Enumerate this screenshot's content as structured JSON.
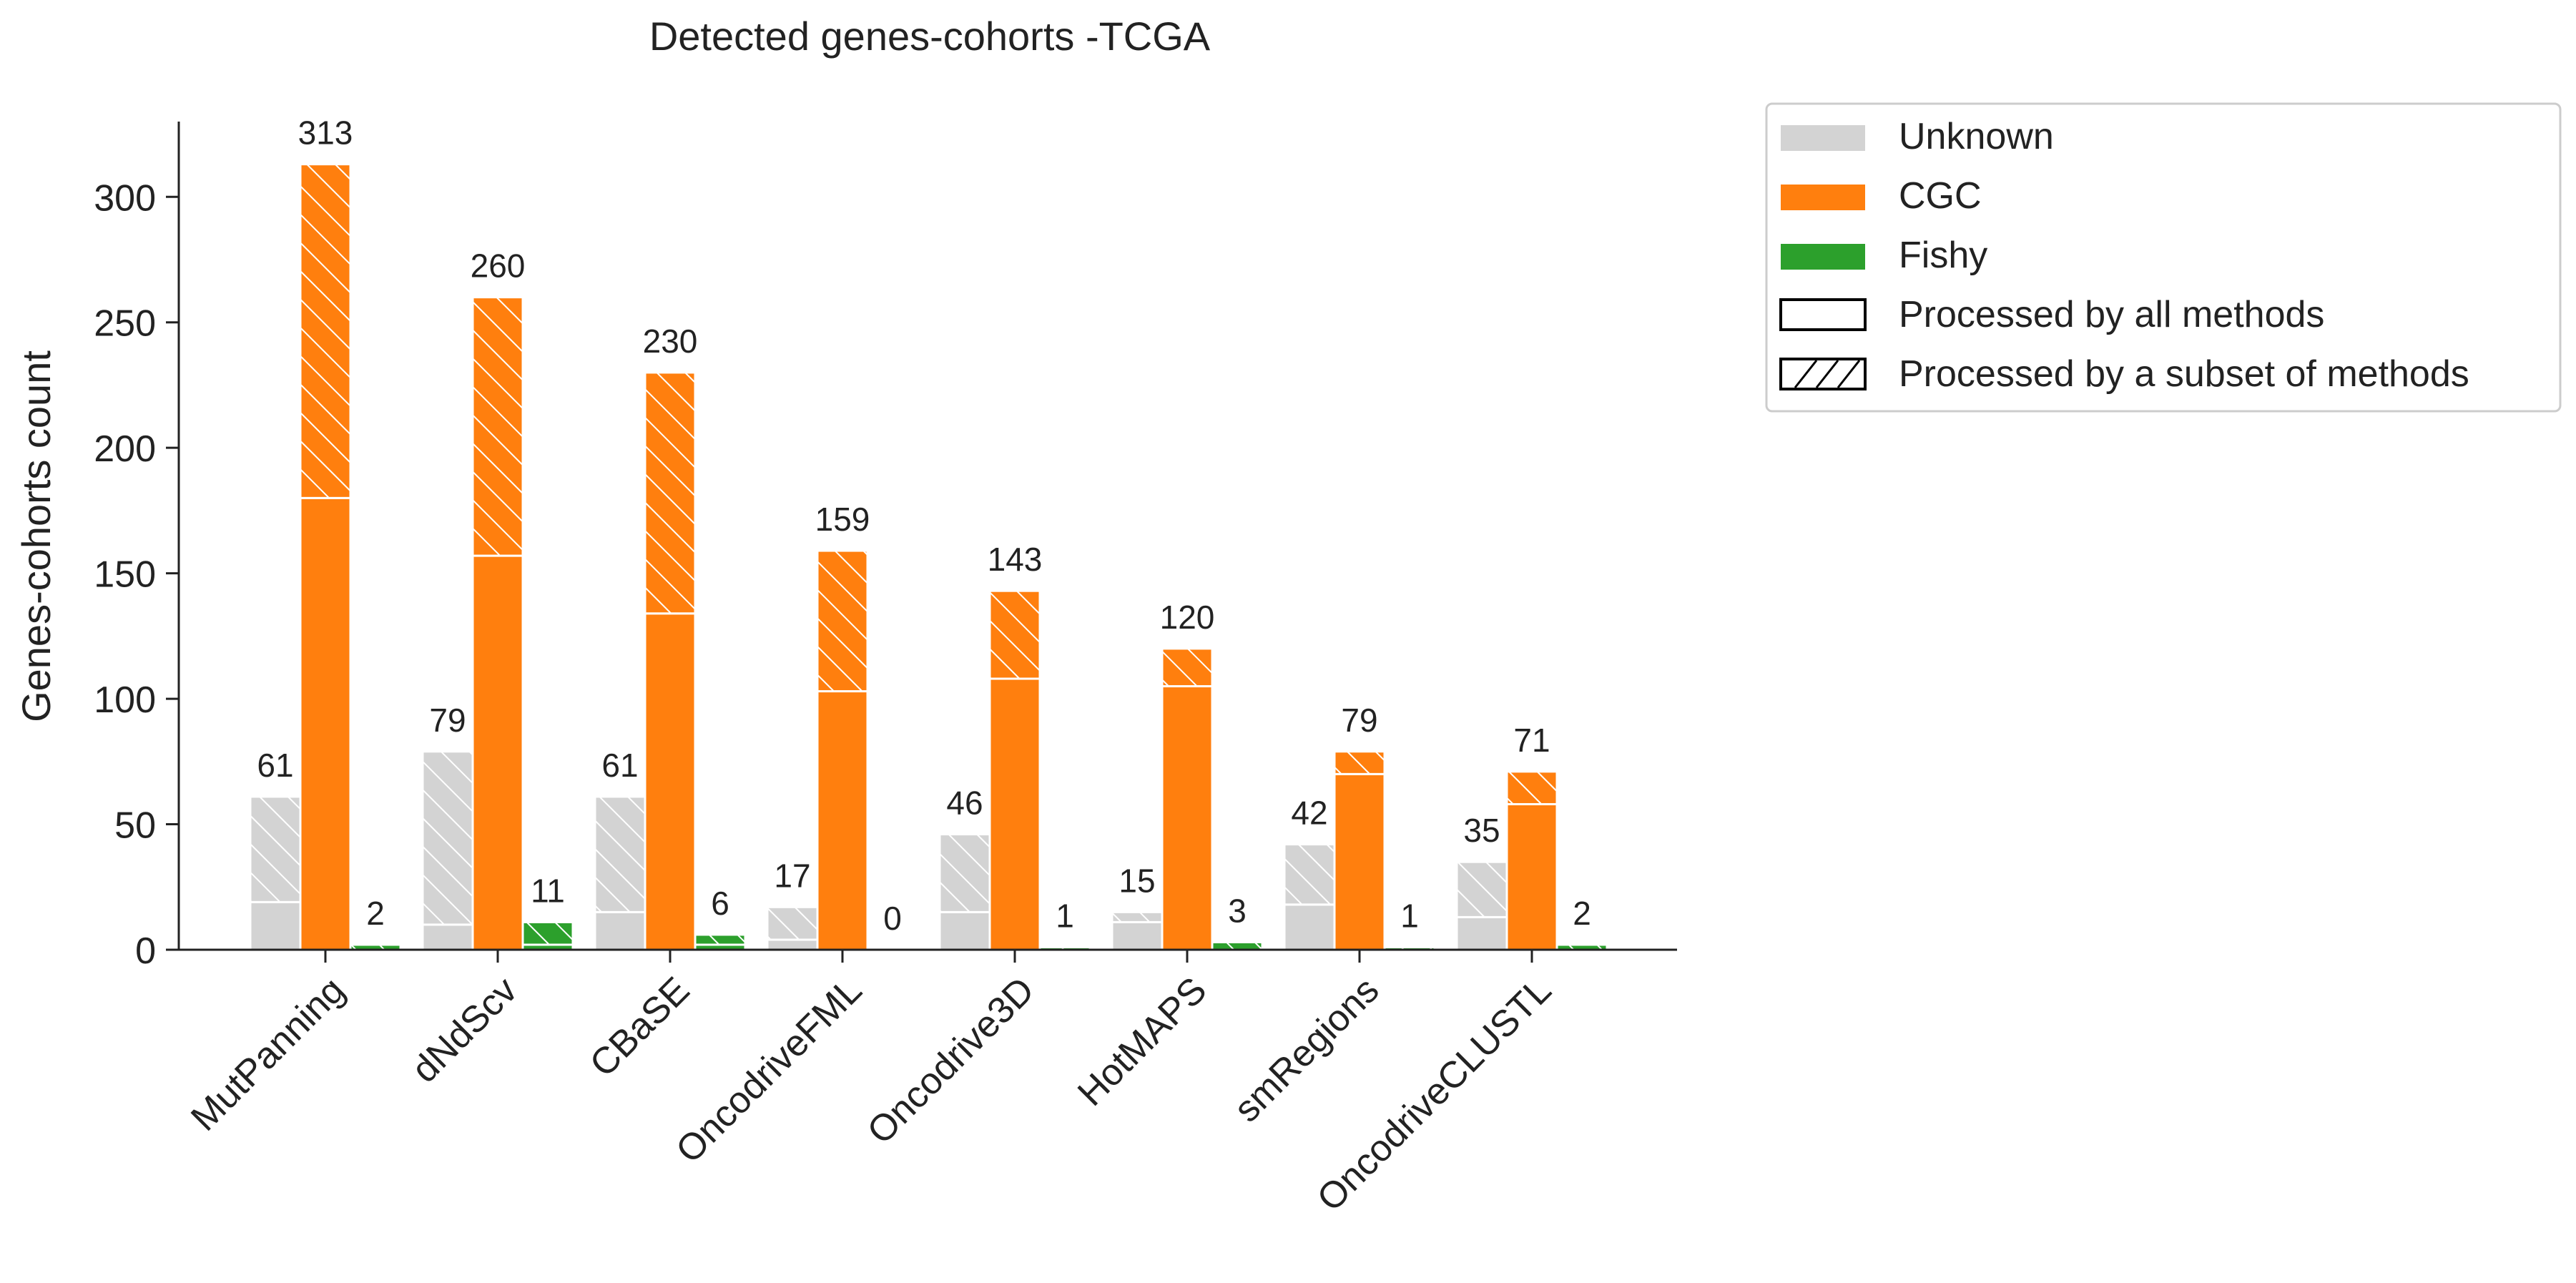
{
  "chart_data": {
    "type": "bar",
    "title": "Detected genes-cohorts -TCGA",
    "xlabel": "",
    "ylabel": "Genes-cohorts count",
    "ylim": [
      0,
      330
    ],
    "yticks": [
      0,
      50,
      100,
      150,
      200,
      250,
      300
    ],
    "categories": [
      "MutPanning",
      "dNdScv",
      "CBaSE",
      "OncodriveFML",
      "Oncodrive3D",
      "HotMAPS",
      "smRegions",
      "OncodriveCLUSTL"
    ],
    "series": [
      {
        "name": "Unknown",
        "color": "#d3d3d3",
        "all_methods": [
          19,
          10,
          15,
          4,
          15,
          11,
          18,
          13
        ],
        "subset_methods": [
          42,
          69,
          46,
          13,
          31,
          4,
          24,
          22
        ],
        "totals": [
          61,
          79,
          61,
          17,
          46,
          15,
          42,
          35
        ]
      },
      {
        "name": "CGC",
        "color": "#ff7f0e",
        "all_methods": [
          180,
          157,
          134,
          103,
          108,
          105,
          70,
          58
        ],
        "subset_methods": [
          133,
          103,
          96,
          56,
          35,
          15,
          9,
          13
        ],
        "totals": [
          313,
          260,
          230,
          159,
          143,
          120,
          79,
          71
        ]
      },
      {
        "name": "Fishy",
        "color": "#2ca02c",
        "all_methods": [
          0,
          2,
          2,
          0,
          0,
          0,
          0,
          0
        ],
        "subset_methods": [
          2,
          9,
          4,
          0,
          1,
          3,
          1,
          2
        ],
        "totals": [
          2,
          11,
          6,
          0,
          1,
          3,
          1,
          2
        ]
      }
    ],
    "legend": {
      "position": "outside-right-top",
      "entries": [
        "Unknown",
        "CGC",
        "Fishy",
        "Processed by all methods",
        "Processed by a subset of methods"
      ]
    },
    "grid": false
  }
}
